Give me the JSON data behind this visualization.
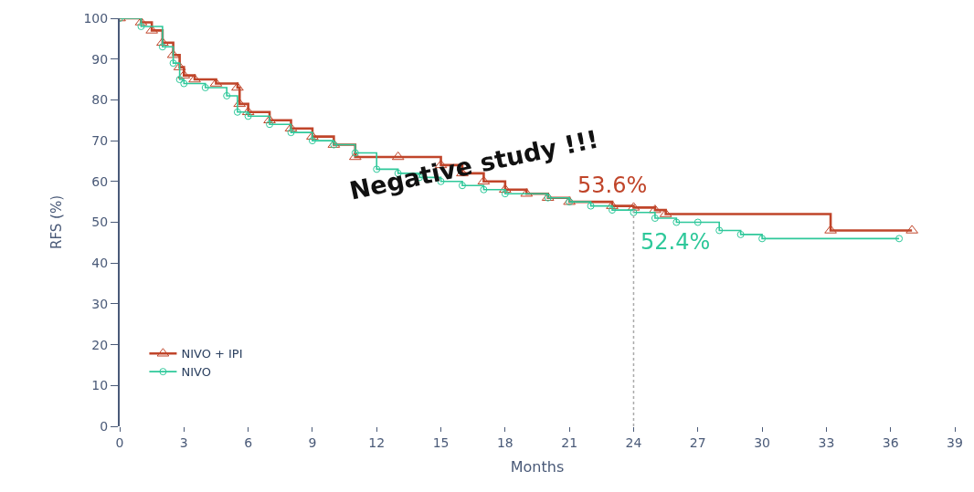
{
  "chart_data": {
    "type": "step",
    "xlabel": "Months",
    "ylabel": "RFS (%)",
    "xlim": [
      0,
      39
    ],
    "xticks": [
      0,
      3,
      6,
      9,
      12,
      15,
      18,
      21,
      24,
      27,
      30,
      33,
      36,
      39
    ],
    "ylim": [
      0,
      100
    ],
    "yticks": [
      0,
      10,
      20,
      30,
      40,
      50,
      60,
      70,
      80,
      90,
      100
    ],
    "legend": "bottom left",
    "line_style": "solid",
    "series": [
      {
        "name": "NIVO + IPI",
        "color": "#c0452a",
        "marker": "triangle",
        "x": [
          0,
          1,
          1.5,
          2,
          2.5,
          2.8,
          3,
          3.5,
          4.5,
          5.5,
          5.6,
          6,
          7,
          8,
          9,
          10,
          11,
          13,
          15,
          16,
          17,
          18,
          19,
          20,
          21,
          23,
          24,
          25,
          25.5,
          33.2,
          37
        ],
        "values": [
          100,
          99,
          97,
          94,
          91,
          88,
          86,
          85,
          84,
          83,
          79,
          77,
          75,
          73,
          71,
          69,
          66,
          66,
          64,
          62,
          60,
          58,
          57,
          56,
          55,
          54,
          53.6,
          53,
          52,
          48,
          48
        ]
      },
      {
        "name": "NIVO",
        "color": "#2ec89a",
        "marker": "circle",
        "x": [
          0,
          1,
          2,
          2.5,
          2.8,
          3,
          4,
          5,
          5.5,
          6,
          7,
          8,
          9,
          10,
          11,
          12,
          13,
          14,
          15,
          16,
          17,
          18,
          20,
          21,
          22,
          23,
          24,
          25,
          26,
          27,
          28,
          29,
          30,
          36.4
        ],
        "values": [
          100,
          98,
          93,
          89,
          85,
          84,
          83,
          81,
          77,
          76,
          74,
          72,
          70,
          69,
          67,
          63,
          62,
          61,
          60,
          59,
          58,
          57,
          56,
          55,
          54,
          53,
          52.4,
          51,
          50,
          50,
          48,
          47,
          46,
          46
        ]
      }
    ],
    "ref_lines": [
      {
        "axis": "x",
        "value": 24,
        "color": "#aaaaaa",
        "line_style": "dotted"
      }
    ],
    "annotations": [
      "Negative study !!!",
      {
        "text": "53.6%",
        "x": 24,
        "y": 53.6
      },
      {
        "text": "52.4%",
        "x": 24,
        "y": 52.4
      }
    ]
  }
}
